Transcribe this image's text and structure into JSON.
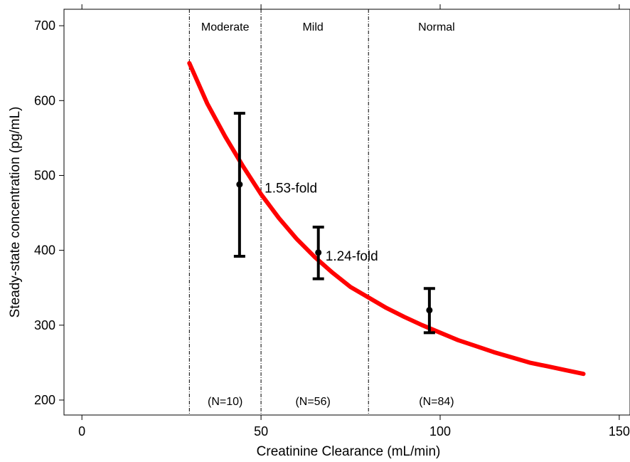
{
  "chart_data": {
    "type": "line",
    "xlabel": "Creatinine Clearance (mL/min)",
    "ylabel": "Steady-state concentration (pg/mL)",
    "xlim": [
      -5,
      153
    ],
    "ylim": [
      180,
      722
    ],
    "xticks": [
      0,
      50,
      100,
      150
    ],
    "yticks": [
      200,
      300,
      400,
      500,
      600,
      700
    ],
    "grid": false,
    "curve": {
      "color": "#ff0000",
      "x": [
        30,
        35,
        40,
        45,
        50,
        55,
        60,
        65,
        70,
        75,
        80,
        85,
        90,
        95,
        100,
        105,
        110,
        115,
        120,
        125,
        130,
        135,
        140
      ],
      "y": [
        650,
        596,
        552,
        512,
        475,
        443,
        415,
        391,
        370,
        351,
        337,
        323,
        311,
        300,
        290,
        280,
        272,
        264,
        257,
        250,
        245,
        240,
        235
      ]
    },
    "error_bars": [
      {
        "x": 44,
        "y": 488,
        "low": 392,
        "high": 583
      },
      {
        "x": 66,
        "y": 397,
        "low": 362,
        "high": 431
      },
      {
        "x": 97,
        "y": 320,
        "low": 290,
        "high": 349
      }
    ],
    "dividers": [
      30,
      50,
      80
    ],
    "regions": [
      {
        "label": "Moderate",
        "count": "(N=10)",
        "center": 40
      },
      {
        "label": "Mild",
        "count": "(N=56)",
        "center": 64.5
      },
      {
        "label": "Normal",
        "count": "(N=84)",
        "center": 99
      }
    ],
    "annotations": [
      {
        "text": "1.53-fold",
        "x": 51,
        "y": 483
      },
      {
        "text": "1.24-fold",
        "x": 68,
        "y": 392
      }
    ]
  }
}
